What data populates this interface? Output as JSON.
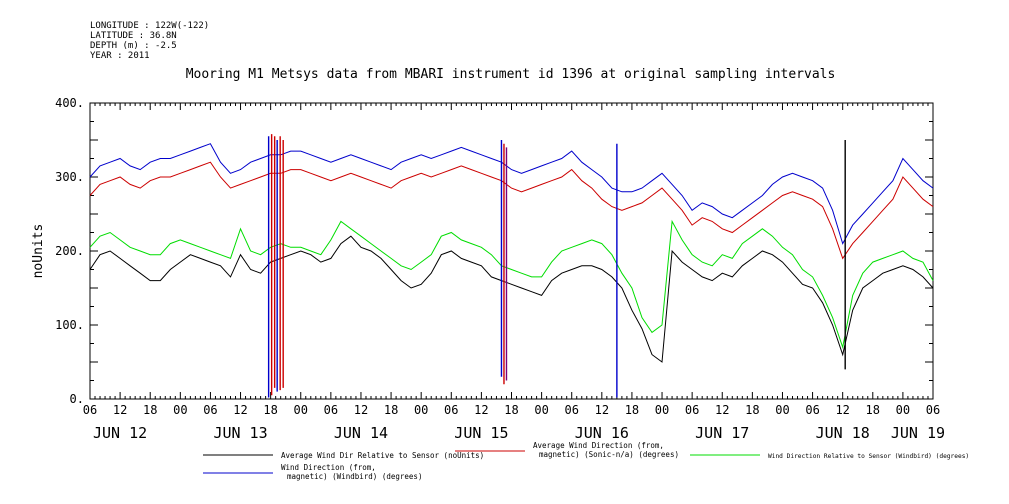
{
  "meta": {
    "longitude": "LONGITUDE : 122W(-122)",
    "latitude": "LATITUDE : 36.8N",
    "depth": "DEPTH (m) : -2.5",
    "year": "YEAR : 2011"
  },
  "chart_data": {
    "type": "line",
    "title": "Mooring M1 Metsys data from MBARI instrument id 1396 at original sampling intervals",
    "ylabel": "noUnits",
    "xlabel": "",
    "ylim": [
      0,
      400
    ],
    "yticks": [
      0,
      100,
      200,
      300,
      400
    ],
    "ytick_labels": [
      "0.",
      "100.",
      "200.",
      "300.",
      "400."
    ],
    "xlim": [
      0,
      168
    ],
    "xtick_hours": [
      0,
      6,
      12,
      18,
      24,
      30,
      36,
      42,
      48,
      54,
      60,
      66,
      72,
      78,
      84,
      90,
      96,
      102,
      108,
      114,
      120,
      126,
      132,
      138,
      144,
      150,
      156,
      162,
      168
    ],
    "xtick_labels": [
      "06",
      "12",
      "18",
      "00",
      "06",
      "12",
      "18",
      "00",
      "06",
      "12",
      "18",
      "00",
      "06",
      "12",
      "18",
      "00",
      "06",
      "12",
      "18",
      "00",
      "06",
      "12",
      "18",
      "00",
      "06",
      "12",
      "18",
      "00",
      "06"
    ],
    "date_labels": [
      {
        "hour": 6,
        "label": "JUN 12"
      },
      {
        "hour": 30,
        "label": "JUN 13"
      },
      {
        "hour": 54,
        "label": "JUN 14"
      },
      {
        "hour": 78,
        "label": "JUN 15"
      },
      {
        "hour": 102,
        "label": "JUN 16"
      },
      {
        "hour": 126,
        "label": "JUN 17"
      },
      {
        "hour": 150,
        "label": "JUN 18"
      },
      {
        "hour": 165,
        "label": "JUN 19"
      }
    ],
    "x_unit": "hours after 2011-06-12 06:00",
    "series": [
      {
        "name": "Average Wind Dir Relative to Sensor (noUnits)",
        "color": "#000000",
        "x": [
          0,
          2,
          4,
          6,
          8,
          10,
          12,
          14,
          16,
          18,
          20,
          22,
          24,
          26,
          28,
          30,
          32,
          34,
          36,
          38,
          40,
          42,
          44,
          46,
          48,
          50,
          52,
          54,
          56,
          58,
          60,
          62,
          64,
          66,
          68,
          70,
          72,
          74,
          76,
          78,
          80,
          82,
          84,
          86,
          88,
          90,
          92,
          94,
          96,
          98,
          100,
          102,
          104,
          106,
          108,
          110,
          112,
          114,
          116,
          118,
          120,
          122,
          124,
          126,
          128,
          130,
          132,
          134,
          136,
          138,
          140,
          142,
          144,
          146,
          148,
          150,
          152,
          154,
          156,
          158,
          160,
          162,
          164,
          166,
          168
        ],
        "values": [
          175,
          195,
          200,
          190,
          180,
          170,
          160,
          160,
          175,
          185,
          195,
          190,
          185,
          180,
          165,
          195,
          175,
          170,
          185,
          190,
          195,
          200,
          195,
          185,
          190,
          210,
          220,
          205,
          200,
          190,
          175,
          160,
          150,
          155,
          170,
          195,
          200,
          190,
          185,
          180,
          165,
          160,
          155,
          150,
          145,
          140,
          160,
          170,
          175,
          180,
          180,
          175,
          165,
          150,
          120,
          95,
          60,
          50,
          200,
          185,
          175,
          165,
          160,
          170,
          165,
          180,
          190,
          200,
          195,
          185,
          170,
          155,
          150,
          130,
          100,
          60,
          120,
          150,
          160,
          170,
          175,
          180,
          175,
          165,
          150
        ]
      },
      {
        "name": "Average Wind Direction (from, magnetic) (Sonic-n/a) (degrees)",
        "color": "#cc0000",
        "x": [
          0,
          2,
          4,
          6,
          8,
          10,
          12,
          14,
          16,
          18,
          20,
          22,
          24,
          26,
          28,
          30,
          32,
          34,
          36,
          38,
          40,
          42,
          44,
          46,
          48,
          50,
          52,
          54,
          56,
          58,
          60,
          62,
          64,
          66,
          68,
          70,
          72,
          74,
          76,
          78,
          80,
          82,
          84,
          86,
          88,
          90,
          92,
          94,
          96,
          98,
          100,
          102,
          104,
          106,
          108,
          110,
          112,
          114,
          116,
          118,
          120,
          122,
          124,
          126,
          128,
          130,
          132,
          134,
          136,
          138,
          140,
          142,
          144,
          146,
          148,
          150,
          152,
          154,
          156,
          158,
          160,
          162,
          164,
          166,
          168
        ],
        "values": [
          275,
          290,
          295,
          300,
          290,
          285,
          295,
          300,
          300,
          305,
          310,
          315,
          320,
          300,
          285,
          290,
          295,
          300,
          305,
          305,
          310,
          310,
          305,
          300,
          295,
          300,
          305,
          300,
          295,
          290,
          285,
          295,
          300,
          305,
          300,
          305,
          310,
          315,
          310,
          305,
          300,
          295,
          285,
          280,
          285,
          290,
          295,
          300,
          310,
          295,
          285,
          270,
          260,
          255,
          260,
          265,
          275,
          285,
          270,
          255,
          235,
          245,
          240,
          230,
          225,
          235,
          245,
          255,
          265,
          275,
          280,
          275,
          270,
          260,
          230,
          190,
          210,
          225,
          240,
          255,
          270,
          300,
          285,
          270,
          260
        ]
      },
      {
        "name": "Wind Direction Relative to Sensor (Windbird) (degrees)",
        "color": "#00dd00",
        "x": [
          0,
          2,
          4,
          6,
          8,
          10,
          12,
          14,
          16,
          18,
          20,
          22,
          24,
          26,
          28,
          30,
          32,
          34,
          36,
          38,
          40,
          42,
          44,
          46,
          48,
          50,
          52,
          54,
          56,
          58,
          60,
          62,
          64,
          66,
          68,
          70,
          72,
          74,
          76,
          78,
          80,
          82,
          84,
          86,
          88,
          90,
          92,
          94,
          96,
          98,
          100,
          102,
          104,
          106,
          108,
          110,
          112,
          114,
          116,
          118,
          120,
          122,
          124,
          126,
          128,
          130,
          132,
          134,
          136,
          138,
          140,
          142,
          144,
          146,
          148,
          150,
          152,
          154,
          156,
          158,
          160,
          162,
          164,
          166,
          168
        ],
        "values": [
          205,
          220,
          225,
          215,
          205,
          200,
          195,
          195,
          210,
          215,
          210,
          205,
          200,
          195,
          190,
          230,
          200,
          195,
          205,
          210,
          205,
          205,
          200,
          195,
          215,
          240,
          230,
          220,
          210,
          200,
          190,
          180,
          175,
          185,
          195,
          220,
          225,
          215,
          210,
          205,
          195,
          180,
          175,
          170,
          165,
          165,
          185,
          200,
          205,
          210,
          215,
          210,
          195,
          170,
          150,
          110,
          90,
          100,
          240,
          215,
          195,
          185,
          180,
          195,
          190,
          210,
          220,
          230,
          220,
          205,
          195,
          175,
          165,
          140,
          110,
          70,
          140,
          170,
          185,
          190,
          195,
          200,
          190,
          185,
          160
        ]
      },
      {
        "name": "Wind Direction (from, magnetic) (Windbird) (degrees)",
        "color": "#0000cc",
        "x": [
          0,
          2,
          4,
          6,
          8,
          10,
          12,
          14,
          16,
          18,
          20,
          22,
          24,
          26,
          28,
          30,
          32,
          34,
          36,
          38,
          40,
          42,
          44,
          46,
          48,
          50,
          52,
          54,
          56,
          58,
          60,
          62,
          64,
          66,
          68,
          70,
          72,
          74,
          76,
          78,
          80,
          82,
          84,
          86,
          88,
          90,
          92,
          94,
          96,
          98,
          100,
          102,
          104,
          106,
          108,
          110,
          112,
          114,
          116,
          118,
          120,
          122,
          124,
          126,
          128,
          130,
          132,
          134,
          136,
          138,
          140,
          142,
          144,
          146,
          148,
          150,
          152,
          154,
          156,
          158,
          160,
          162,
          164,
          166,
          168
        ],
        "values": [
          300,
          315,
          320,
          325,
          315,
          310,
          320,
          325,
          325,
          330,
          335,
          340,
          345,
          320,
          305,
          310,
          320,
          325,
          330,
          330,
          335,
          335,
          330,
          325,
          320,
          325,
          330,
          325,
          320,
          315,
          310,
          320,
          325,
          330,
          325,
          330,
          335,
          340,
          335,
          330,
          325,
          320,
          310,
          305,
          310,
          315,
          320,
          325,
          335,
          320,
          310,
          300,
          285,
          280,
          280,
          285,
          295,
          305,
          290,
          275,
          255,
          265,
          260,
          250,
          245,
          255,
          265,
          275,
          290,
          300,
          305,
          300,
          295,
          285,
          255,
          210,
          235,
          250,
          265,
          280,
          295,
          325,
          310,
          295,
          285
        ]
      }
    ],
    "spikes": [
      {
        "hour": 35.6,
        "color": "#0000cc",
        "from": 355,
        "to": 2
      },
      {
        "hour": 36.2,
        "color": "#cc0000",
        "from": 358,
        "to": 5
      },
      {
        "hour": 36.8,
        "color": "#cc0000",
        "from": 355,
        "to": 15
      },
      {
        "hour": 37.3,
        "color": "#0000cc",
        "from": 350,
        "to": 10
      },
      {
        "hour": 37.9,
        "color": "#cc0000",
        "from": 355,
        "to": 12
      },
      {
        "hour": 38.5,
        "color": "#cc0000",
        "from": 350,
        "to": 15
      },
      {
        "hour": 82.0,
        "color": "#0000cc",
        "from": 350,
        "to": 30
      },
      {
        "hour": 82.5,
        "color": "#cc0000",
        "from": 345,
        "to": 20
      },
      {
        "hour": 83.0,
        "color": "#7a007a",
        "from": 340,
        "to": 25
      },
      {
        "hour": 105.0,
        "color": "#0000cc",
        "from": 345,
        "to": 2
      },
      {
        "hour": 150.5,
        "color": "#000000",
        "from": 350,
        "to": 40
      }
    ]
  },
  "legend": [
    {
      "label": "Average Wind Dir Relative to Sensor (noUnits)",
      "color": "#000000"
    },
    {
      "label": "Average Wind Direction (from,\nmagnetic) (Sonic-n/a) (degrees)",
      "color": "#cc0000"
    },
    {
      "label": "Wind Direction Relative to Sensor (Windbird) (degrees)",
      "color": "#00dd00"
    },
    {
      "label": "Wind Direction (from,\nmagnetic) (Windbird) (degrees)",
      "color": "#0000cc"
    }
  ]
}
